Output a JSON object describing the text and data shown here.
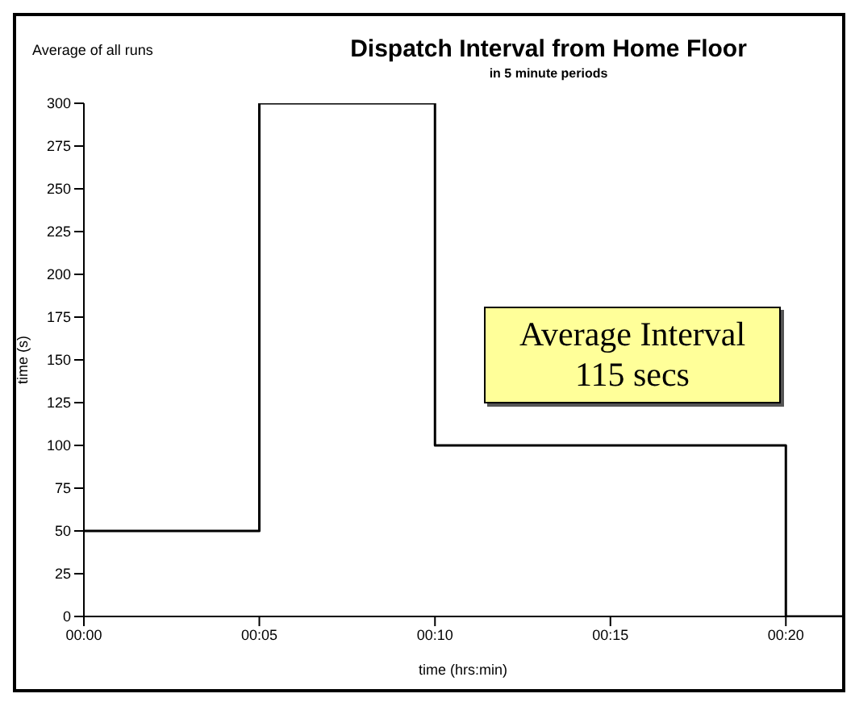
{
  "chart_data": {
    "type": "step",
    "title": "Dispatch Interval from Home Floor",
    "subtitle": "in 5 minute periods",
    "xlabel": "time (hrs:min)",
    "ylabel": "time (s)",
    "annotations": [
      "Average of all runs",
      "Average Interval 115 secs"
    ],
    "x": [
      0,
      0.0833,
      0.1667,
      0.25,
      0.3333,
      0.36
    ],
    "series": [
      {
        "color": "#000000",
        "values": [
          50,
          300,
          100,
          100,
          0,
          0
        ]
      }
    ],
    "xlim": [
      0,
      0.36
    ],
    "xticks": [
      {
        "value": 0,
        "label": "00:00"
      },
      {
        "value": 0.0833,
        "label": "00:05"
      },
      {
        "value": 0.1667,
        "label": "00:10"
      },
      {
        "value": 0.25,
        "label": "00:15"
      },
      {
        "value": 0.3333,
        "label": "00:20"
      }
    ],
    "ylim": [
      0,
      300
    ],
    "yticks": [
      0,
      25,
      50,
      75,
      100,
      125,
      150,
      175,
      200,
      225,
      250,
      275,
      300
    ],
    "grid": false,
    "legend": false,
    "marker": "none",
    "line_style": "solid"
  }
}
